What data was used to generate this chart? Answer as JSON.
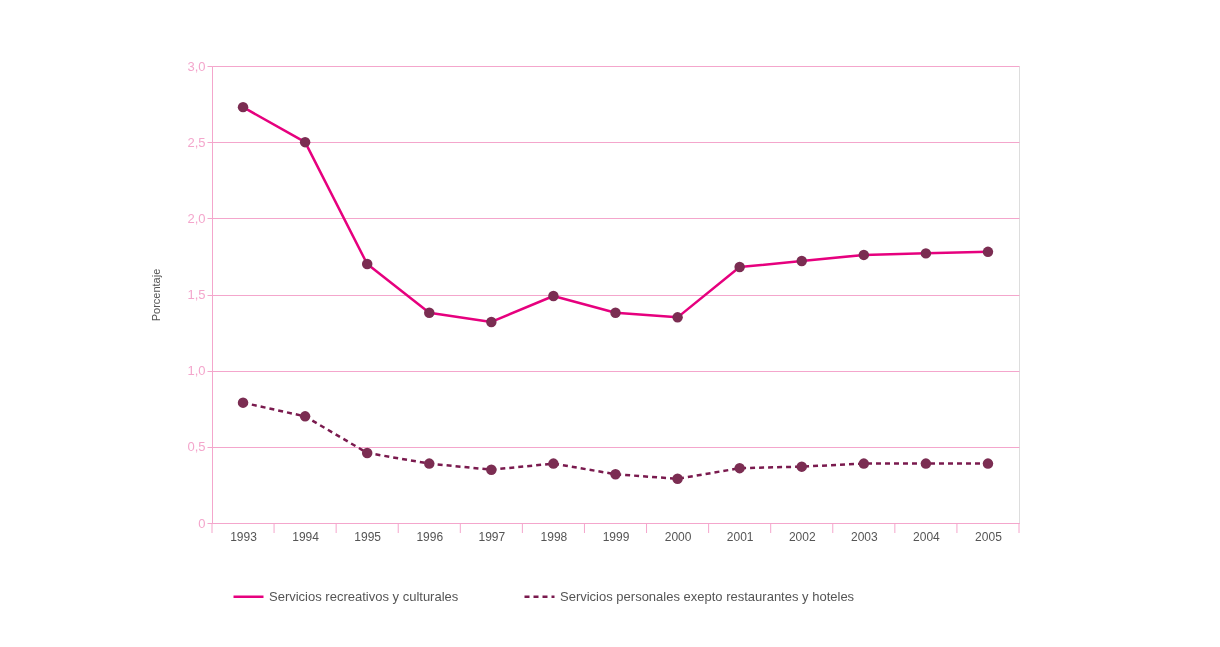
{
  "chart_data": {
    "type": "line",
    "ylabel": "Porcentaje",
    "categories": [
      "1993",
      "1994",
      "1995",
      "1996",
      "1997",
      "1998",
      "1999",
      "2000",
      "2001",
      "2002",
      "2003",
      "2004",
      "2005"
    ],
    "series": [
      {
        "name": "Servicios recreativos y culturales",
        "color": "#e6007e",
        "line_style": "solid",
        "values": [
          2.73,
          2.5,
          1.7,
          1.38,
          1.32,
          1.49,
          1.38,
          1.35,
          1.68,
          1.72,
          1.76,
          1.77,
          1.78
        ]
      },
      {
        "name": "Servicios personales exepto restaurantes y hoteles",
        "color": "#7a1a4e",
        "line_style": "dashed",
        "values": [
          0.79,
          0.7,
          0.46,
          0.39,
          0.35,
          0.39,
          0.32,
          0.29,
          0.36,
          0.37,
          0.39,
          0.39,
          0.39
        ]
      }
    ],
    "ylim": [
      0,
      3.0
    ],
    "yticks": [
      0,
      {
        "value": 0.5,
        "label": "0,5"
      },
      {
        "value": 1.0,
        "label": "1,0"
      },
      {
        "value": 1.5,
        "label": "1,5"
      },
      {
        "value": 2.0,
        "label": "2,0"
      },
      {
        "value": 2.5,
        "label": "2,5"
      },
      {
        "value": 3.0,
        "label": "3,0"
      }
    ],
    "grid": "y",
    "legend": "bottom",
    "marker": "circle"
  }
}
